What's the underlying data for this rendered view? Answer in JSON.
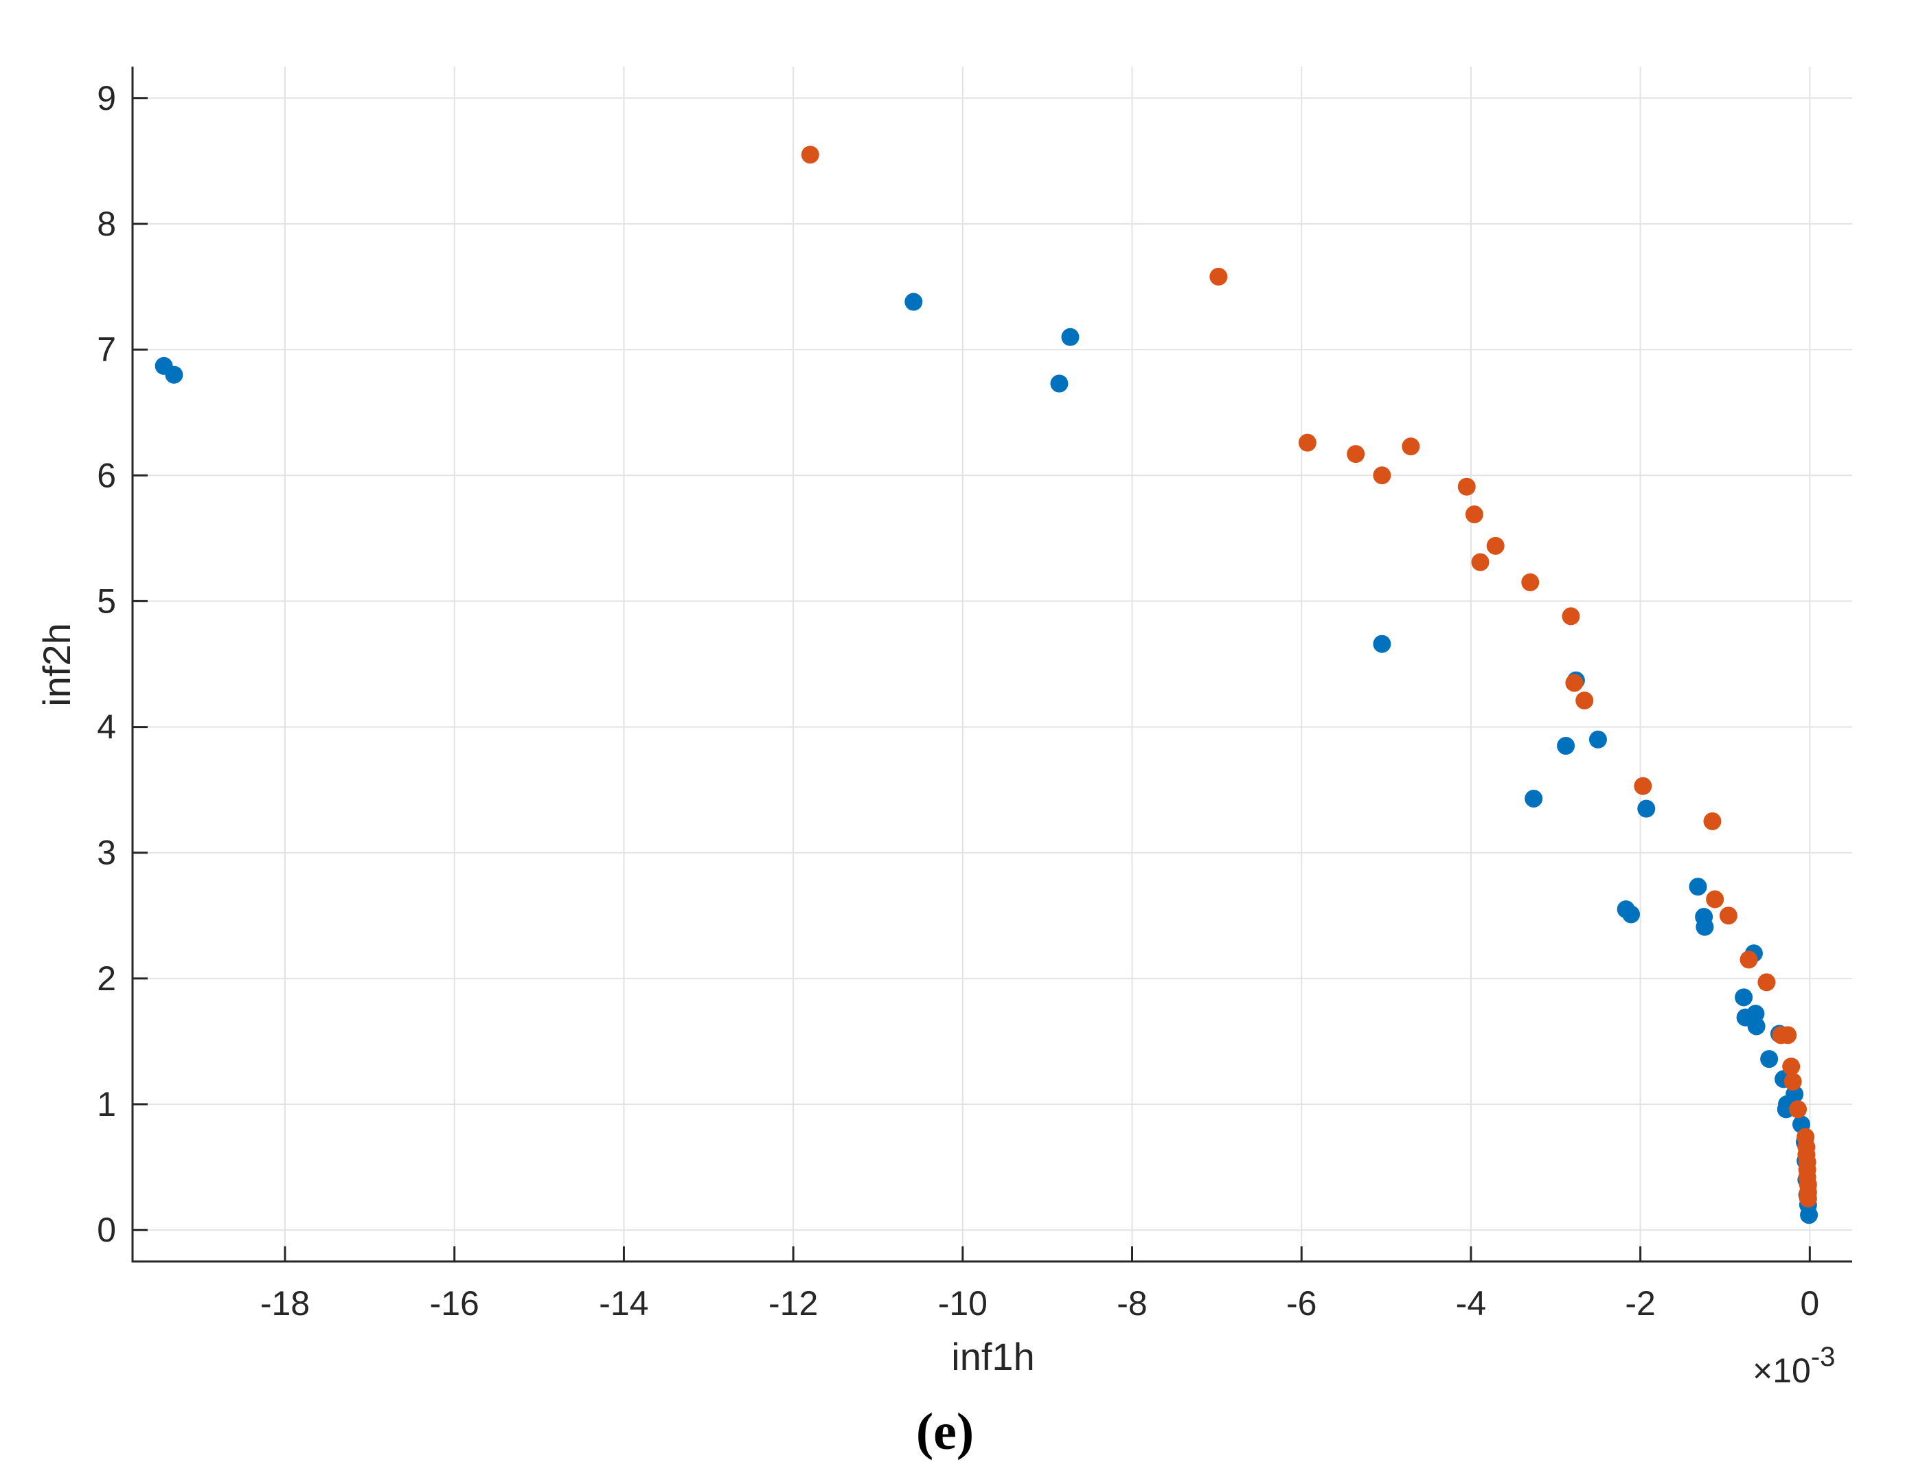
{
  "chart_data": {
    "type": "scatter",
    "xlabel": "inf1h",
    "ylabel": "inf2h",
    "x_exponent_label": "×10",
    "x_exponent_power": "-3",
    "panel_label": "(e)",
    "xlim": [
      -19.8,
      0.5
    ],
    "ylim": [
      -0.25,
      9.25
    ],
    "x_ticks": [
      -18,
      -16,
      -14,
      -12,
      -10,
      -8,
      -6,
      -4,
      -2,
      0
    ],
    "x_tick_labels": [
      "-18",
      "-16",
      "-14",
      "-12",
      "-10",
      "-8",
      "-6",
      "-4",
      "-2",
      "0"
    ],
    "y_ticks": [
      0,
      1,
      2,
      3,
      4,
      5,
      6,
      7,
      8,
      9
    ],
    "y_tick_labels": [
      "0",
      "1",
      "2",
      "3",
      "4",
      "5",
      "6",
      "7",
      "8",
      "9"
    ],
    "grid": true,
    "series": [
      {
        "color": "#0072BD",
        "points": [
          [
            -19.43,
            6.87
          ],
          [
            -19.31,
            6.8
          ],
          [
            -10.58,
            7.38
          ],
          [
            -8.73,
            7.1
          ],
          [
            -8.86,
            6.73
          ],
          [
            -5.05,
            4.66
          ],
          [
            -2.76,
            4.37
          ],
          [
            -2.5,
            3.9
          ],
          [
            -2.88,
            3.85
          ],
          [
            -3.26,
            3.43
          ],
          [
            -1.93,
            3.35
          ],
          [
            -1.32,
            2.73
          ],
          [
            -1.25,
            2.49
          ],
          [
            -1.24,
            2.41
          ],
          [
            -2.17,
            2.55
          ],
          [
            -2.11,
            2.51
          ],
          [
            -0.66,
            2.2
          ],
          [
            -0.78,
            1.85
          ],
          [
            -0.64,
            1.72
          ],
          [
            -0.76,
            1.69
          ],
          [
            -0.63,
            1.62
          ],
          [
            -0.48,
            1.36
          ],
          [
            -0.36,
            1.56
          ],
          [
            -0.31,
            1.2
          ],
          [
            -0.27,
            1.0
          ],
          [
            -0.28,
            0.96
          ],
          [
            -0.18,
            1.08
          ],
          [
            -0.1,
            0.84
          ],
          [
            -0.06,
            0.7
          ],
          [
            -0.05,
            0.55
          ],
          [
            -0.04,
            0.4
          ],
          [
            -0.03,
            0.28
          ],
          [
            -0.02,
            0.2
          ],
          [
            -0.01,
            0.12
          ]
        ]
      },
      {
        "color": "#D95319",
        "points": [
          [
            -11.8,
            8.55
          ],
          [
            -6.98,
            7.58
          ],
          [
            -5.93,
            6.26
          ],
          [
            -5.36,
            6.17
          ],
          [
            -4.71,
            6.23
          ],
          [
            -5.05,
            6.0
          ],
          [
            -4.05,
            5.91
          ],
          [
            -3.96,
            5.69
          ],
          [
            -3.71,
            5.44
          ],
          [
            -3.89,
            5.31
          ],
          [
            -3.3,
            5.15
          ],
          [
            -2.82,
            4.88
          ],
          [
            -2.78,
            4.35
          ],
          [
            -2.66,
            4.21
          ],
          [
            -1.97,
            3.53
          ],
          [
            -1.15,
            3.25
          ],
          [
            -1.12,
            2.63
          ],
          [
            -0.96,
            2.5
          ],
          [
            -0.72,
            2.15
          ],
          [
            -0.51,
            1.97
          ],
          [
            -0.34,
            1.55
          ],
          [
            -0.26,
            1.55
          ],
          [
            -0.22,
            1.3
          ],
          [
            -0.2,
            1.18
          ],
          [
            -0.14,
            0.96
          ],
          [
            -0.05,
            0.74
          ],
          [
            -0.04,
            0.66
          ],
          [
            -0.04,
            0.6
          ],
          [
            -0.03,
            0.54
          ],
          [
            -0.03,
            0.48
          ],
          [
            -0.03,
            0.42
          ],
          [
            -0.02,
            0.36
          ],
          [
            -0.02,
            0.3
          ],
          [
            -0.02,
            0.25
          ]
        ]
      }
    ]
  }
}
